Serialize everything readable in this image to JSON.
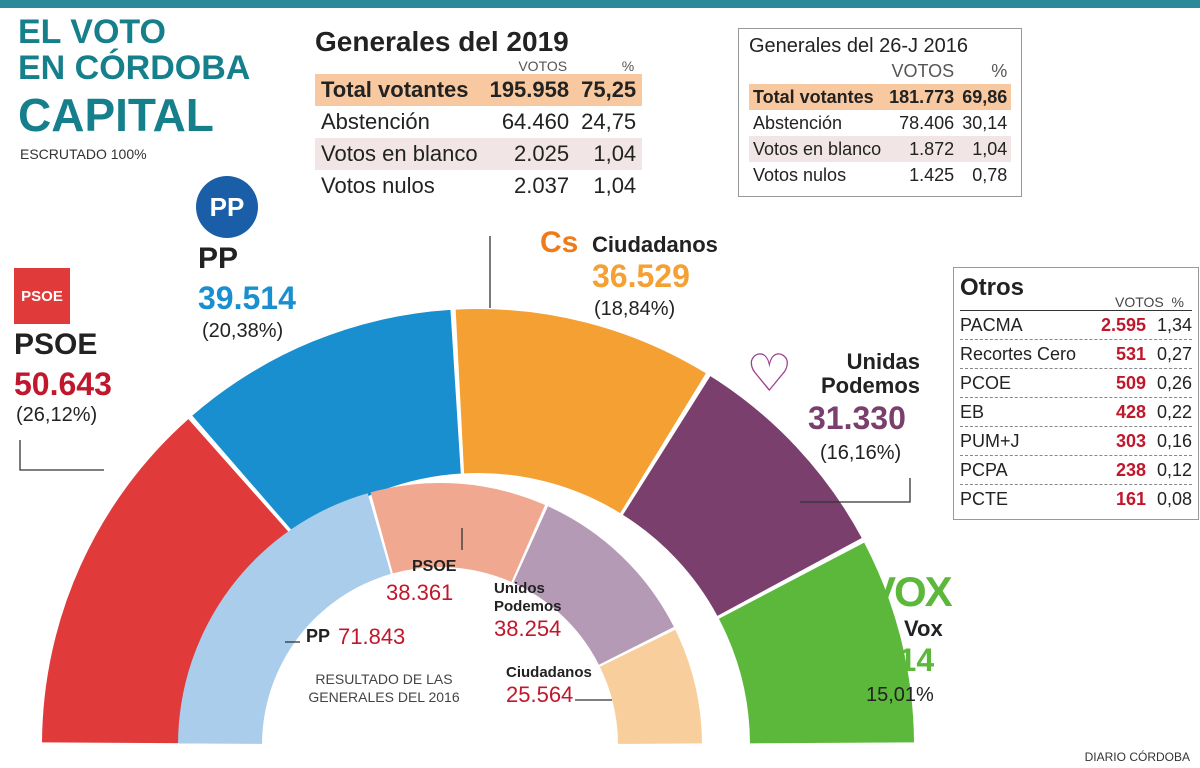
{
  "title": {
    "line1": "EL VOTO",
    "line2": "EN CÓRDOBA",
    "line3": "CAPITAL",
    "subtitle": "ESCRUTADO 100%"
  },
  "table2019": {
    "title": "Generales del 2019",
    "headers": [
      "VOTOS",
      "%"
    ],
    "rows": [
      {
        "label": "Total votantes",
        "votes": "195.958",
        "pct": "75,25"
      },
      {
        "label": "Abstención",
        "votes": "64.460",
        "pct": "24,75"
      },
      {
        "label": "Votos en blanco",
        "votes": "2.025",
        "pct": "1,04"
      },
      {
        "label": "Votos nulos",
        "votes": "2.037",
        "pct": "1,04"
      }
    ]
  },
  "table2016": {
    "title": "Generales del 26-J 2016",
    "headers": [
      "VOTOS",
      "%"
    ],
    "rows": [
      {
        "label": "Total votantes",
        "votes": "181.773",
        "pct": "69,86"
      },
      {
        "label": "Abstención",
        "votes": "78.406",
        "pct": "30,14"
      },
      {
        "label": "Votos en blanco",
        "votes": "1.872",
        "pct": "1,04"
      },
      {
        "label": "Votos nulos",
        "votes": "1.425",
        "pct": "0,78"
      }
    ]
  },
  "otros": {
    "title": "Otros",
    "headers": [
      "VOTOS",
      "%"
    ],
    "rows": [
      {
        "label": "PACMA",
        "votes": "2.595",
        "pct": "1,34"
      },
      {
        "label": "Recortes Cero",
        "votes": "531",
        "pct": "0,27"
      },
      {
        "label": "PCOE",
        "votes": "509",
        "pct": "0,26"
      },
      {
        "label": "EB",
        "votes": "428",
        "pct": "0,22"
      },
      {
        "label": "PUM+J",
        "votes": "303",
        "pct": "0,16"
      },
      {
        "label": "PCPA",
        "votes": "238",
        "pct": "0,12"
      },
      {
        "label": "PCTE",
        "votes": "161",
        "pct": "0,08"
      }
    ]
  },
  "chart_data": [
    {
      "type": "pie",
      "shape": "semicircle",
      "series": [
        {
          "name": "PSOE",
          "value": 50643,
          "label": "50.643",
          "pct": "(26,12%)",
          "color": "#e03a3a"
        },
        {
          "name": "PP",
          "value": 39514,
          "label": "39.514",
          "pct": "(20,38%)",
          "color": "#1a8fd0"
        },
        {
          "name": "Ciudadanos",
          "value": 36529,
          "label": "36.529",
          "pct": "(18,84%)",
          "color": "#f4a033"
        },
        {
          "name": "Unidas Podemos",
          "value": 31330,
          "label": "31.330",
          "pct": "(16,16%)",
          "color": "#7a3f6c"
        },
        {
          "name": "Vox",
          "value": 29114,
          "label": "29.114",
          "pct": "15,01%",
          "color": "#5cb83a"
        }
      ]
    },
    {
      "type": "pie",
      "shape": "semicircle",
      "title": "RESULTADO DE LAS GENERALES DEL 2016",
      "series": [
        {
          "name": "PP",
          "value": 71843,
          "label": "71.843",
          "color": "#a9cdea"
        },
        {
          "name": "PSOE",
          "value": 38361,
          "label": "38.361",
          "color": "#f0a890"
        },
        {
          "name": "Unidos Podemos",
          "value": 38254,
          "label": "38.254",
          "color": "#b49ab4"
        },
        {
          "name": "Ciudadanos",
          "value": 25564,
          "label": "25.564",
          "color": "#f8cf9c"
        }
      ]
    }
  ],
  "logos": {
    "psoe": "PSOE",
    "pp": "PP",
    "cs": "Cs",
    "vox": "VOX"
  },
  "labels": {
    "up_line1": "Unidas",
    "up_line2": "Podemos",
    "inner_up_line1": "Unidos",
    "inner_up_line2": "Podemos",
    "inner_title1": "RESULTADO DE LAS",
    "inner_title2": "GENERALES DEL 2016"
  },
  "footer": "DIARIO CÓRDOBA"
}
